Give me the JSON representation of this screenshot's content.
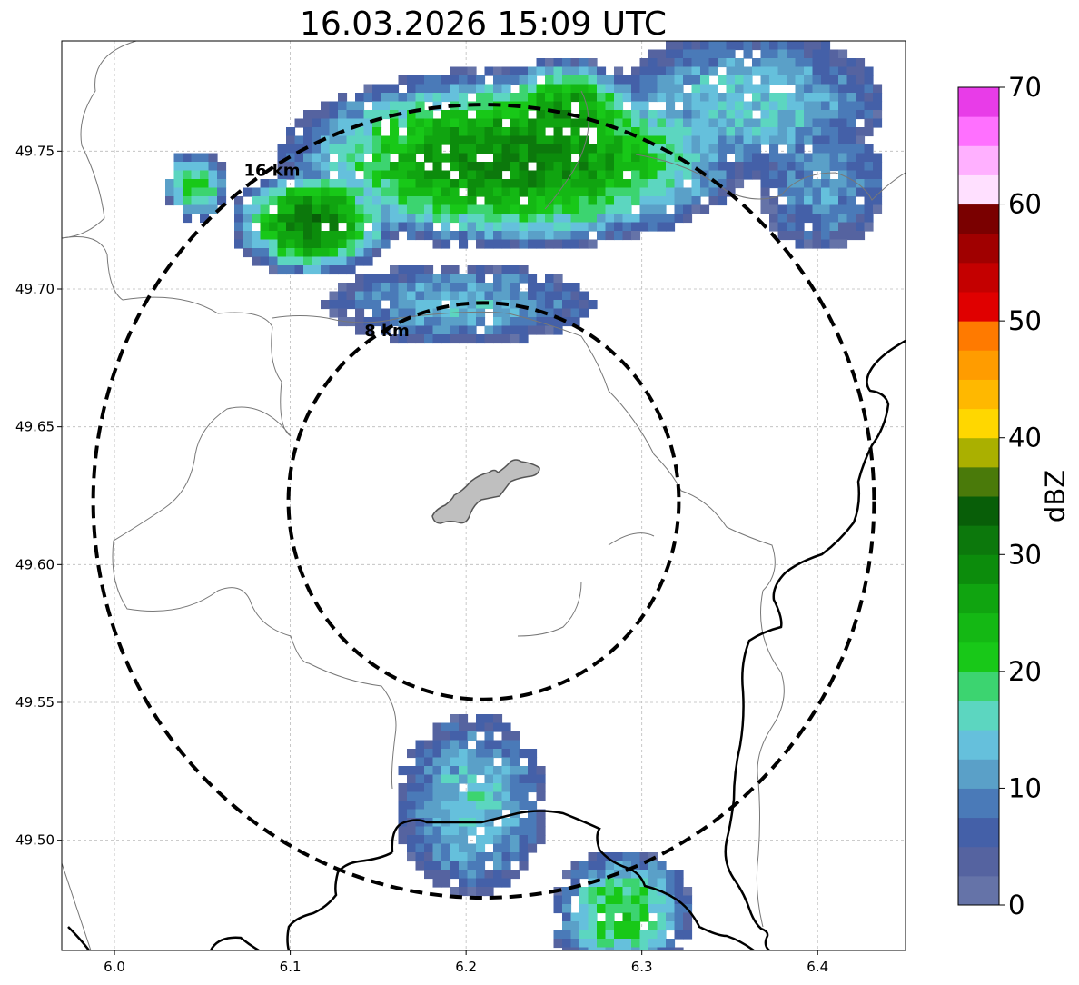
{
  "title": "16.03.2026 15:09 UTC",
  "map": {
    "lon_range": [
      5.97,
      6.45
    ],
    "lat_range": [
      49.46,
      49.79
    ],
    "x_ticks": [
      "6.0",
      "6.1",
      "6.2",
      "6.3",
      "6.4"
    ],
    "y_ticks": [
      "49.50",
      "49.55",
      "49.60",
      "49.65",
      "49.70",
      "49.75"
    ],
    "grid": true
  },
  "range_rings": [
    {
      "label": "16 km",
      "radius_km": 16
    },
    {
      "label": "8 km",
      "radius_km": 8
    }
  ],
  "radar_site": {
    "lon": 6.21,
    "lat": 49.623
  },
  "colorbar": {
    "label": "dBZ",
    "min": 0,
    "max": 70,
    "ticks": [
      "0",
      "10",
      "20",
      "30",
      "40",
      "50",
      "60",
      "70"
    ],
    "colors": [
      "#6573a8",
      "#5563a0",
      "#4460a8",
      "#4a7ab8",
      "#5aa0c8",
      "#65c0dc",
      "#5cd6c0",
      "#3cd470",
      "#18c818",
      "#14b814",
      "#10a410",
      "#0c8c0c",
      "#0c780c",
      "#085e08",
      "#4a7a0a",
      "#aab000",
      "#ffd700",
      "#ffb800",
      "#ff9c00",
      "#ff7a00",
      "#e00000",
      "#c40000",
      "#a00000",
      "#7a0000",
      "#ffe0ff",
      "#ffb0ff",
      "#ff70ff",
      "#e83ce8"
    ]
  },
  "colors": {
    "rings": "#000000",
    "border": "#000000",
    "region_lines": "#777777",
    "city_fill": "#bfbfbf",
    "grid": "#bbbbbb"
  }
}
